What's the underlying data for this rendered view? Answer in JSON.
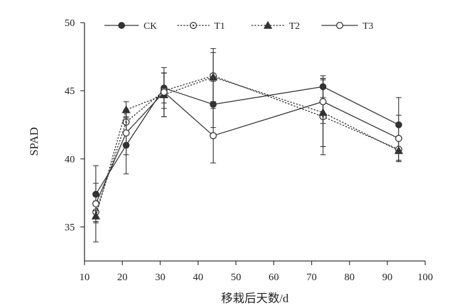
{
  "chart_data": {
    "type": "line",
    "title": "",
    "xlabel": "移栽后天数/d",
    "ylabel": "SPAD",
    "xlim": [
      10,
      100
    ],
    "ylim": [
      32.5,
      50
    ],
    "x_ticks": [
      10,
      20,
      30,
      40,
      50,
      60,
      70,
      80,
      90,
      100
    ],
    "y_ticks": [
      35,
      40,
      45,
      50
    ],
    "grid": false,
    "legend_position": "top",
    "series": [
      {
        "name": "CK",
        "marker": "filled-circle",
        "line_style": "solid",
        "points": [
          {
            "x": 13,
            "y": 37.4,
            "err": 0.8
          },
          {
            "x": 21,
            "y": 41.0,
            "err": 2.1
          },
          {
            "x": 31,
            "y": 45.2,
            "err": 1.1
          },
          {
            "x": 44,
            "y": 44.0,
            "err": 1.7
          },
          {
            "x": 73,
            "y": 45.3,
            "err": 0.8
          },
          {
            "x": 93,
            "y": 42.5,
            "err": 2.0
          }
        ]
      },
      {
        "name": "T1",
        "marker": "open-circle-dot",
        "line_style": "dotted",
        "points": [
          {
            "x": 13,
            "y": 36.1,
            "err": 0.8
          },
          {
            "x": 21,
            "y": 42.7,
            "err": 0.9
          },
          {
            "x": 31,
            "y": 45.0,
            "err": 1.3
          },
          {
            "x": 44,
            "y": 46.1,
            "err": 2.0
          },
          {
            "x": 73,
            "y": 43.1,
            "err": 2.8
          },
          {
            "x": 93,
            "y": 40.7,
            "err": 0.8
          }
        ]
      },
      {
        "name": "T2",
        "marker": "filled-triangle",
        "line_style": "dotted",
        "points": [
          {
            "x": 13,
            "y": 35.8,
            "err": 0.4
          },
          {
            "x": 21,
            "y": 43.6,
            "err": 0.6
          },
          {
            "x": 31,
            "y": 44.7,
            "err": 1.6
          },
          {
            "x": 44,
            "y": 46.0,
            "err": 1.8
          },
          {
            "x": 73,
            "y": 43.4,
            "err": 2.5
          },
          {
            "x": 93,
            "y": 40.6,
            "err": 0.8
          }
        ]
      },
      {
        "name": "T3",
        "marker": "open-circle",
        "line_style": "solid",
        "points": [
          {
            "x": 13,
            "y": 36.7,
            "err": 2.8
          },
          {
            "x": 21,
            "y": 41.9,
            "err": 1.6
          },
          {
            "x": 31,
            "y": 44.9,
            "err": 1.8
          },
          {
            "x": 44,
            "y": 41.7,
            "err": 2.0
          },
          {
            "x": 73,
            "y": 44.2,
            "err": 1.6
          },
          {
            "x": 93,
            "y": 41.5,
            "err": 1.7
          }
        ]
      }
    ],
    "colors": {
      "line": "#333333",
      "marker": "#333333"
    }
  }
}
